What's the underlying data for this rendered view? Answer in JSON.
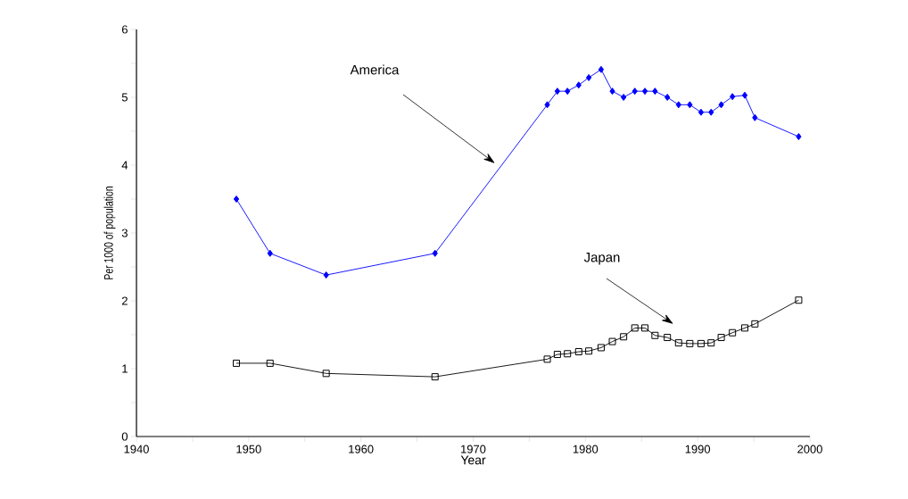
{
  "chart_data": {
    "type": "line",
    "xlabel": "Year",
    "ylabel": "Per 1000 of population",
    "x": [
      1948.9,
      1951.9,
      1956.9,
      1966.6,
      1976.6,
      1977.5,
      1978.4,
      1979.4,
      1980.3,
      1981.4,
      1982.4,
      1983.4,
      1984.4,
      1985.3,
      1986.2,
      1987.3,
      1988.3,
      1989.3,
      1990.3,
      1991.2,
      1992.1,
      1993.1,
      1994.2,
      1995.1,
      1999.0
    ],
    "series": [
      {
        "color": "#0000ff",
        "marker": "diamond",
        "values": [
          3.5,
          2.7,
          2.38,
          2.7,
          4.89,
          5.09,
          5.09,
          5.18,
          5.29,
          5.41,
          5.09,
          5.0,
          5.09,
          5.09,
          5.09,
          5.0,
          4.89,
          4.89,
          4.78,
          4.78,
          4.89,
          5.01,
          5.03,
          4.7,
          4.42
        ]
      },
      {
        "color": "#000000",
        "marker": "square",
        "values": [
          1.08,
          1.08,
          0.93,
          0.88,
          1.14,
          1.21,
          1.22,
          1.25,
          1.26,
          1.31,
          1.4,
          1.47,
          1.6,
          1.6,
          1.49,
          1.46,
          1.38,
          1.37,
          1.37,
          1.38,
          1.46,
          1.53,
          1.6,
          1.66,
          2.01
        ]
      }
    ],
    "annotations": [
      "America",
      "Japan"
    ],
    "xlim": [
      1940,
      2000
    ],
    "xticks": [
      1940,
      1950,
      1960,
      1970,
      1980,
      1990,
      2000
    ],
    "ylim": [
      0,
      6
    ],
    "yticks": [
      0,
      1,
      2,
      3,
      4,
      5,
      6
    ],
    "grid": false
  }
}
